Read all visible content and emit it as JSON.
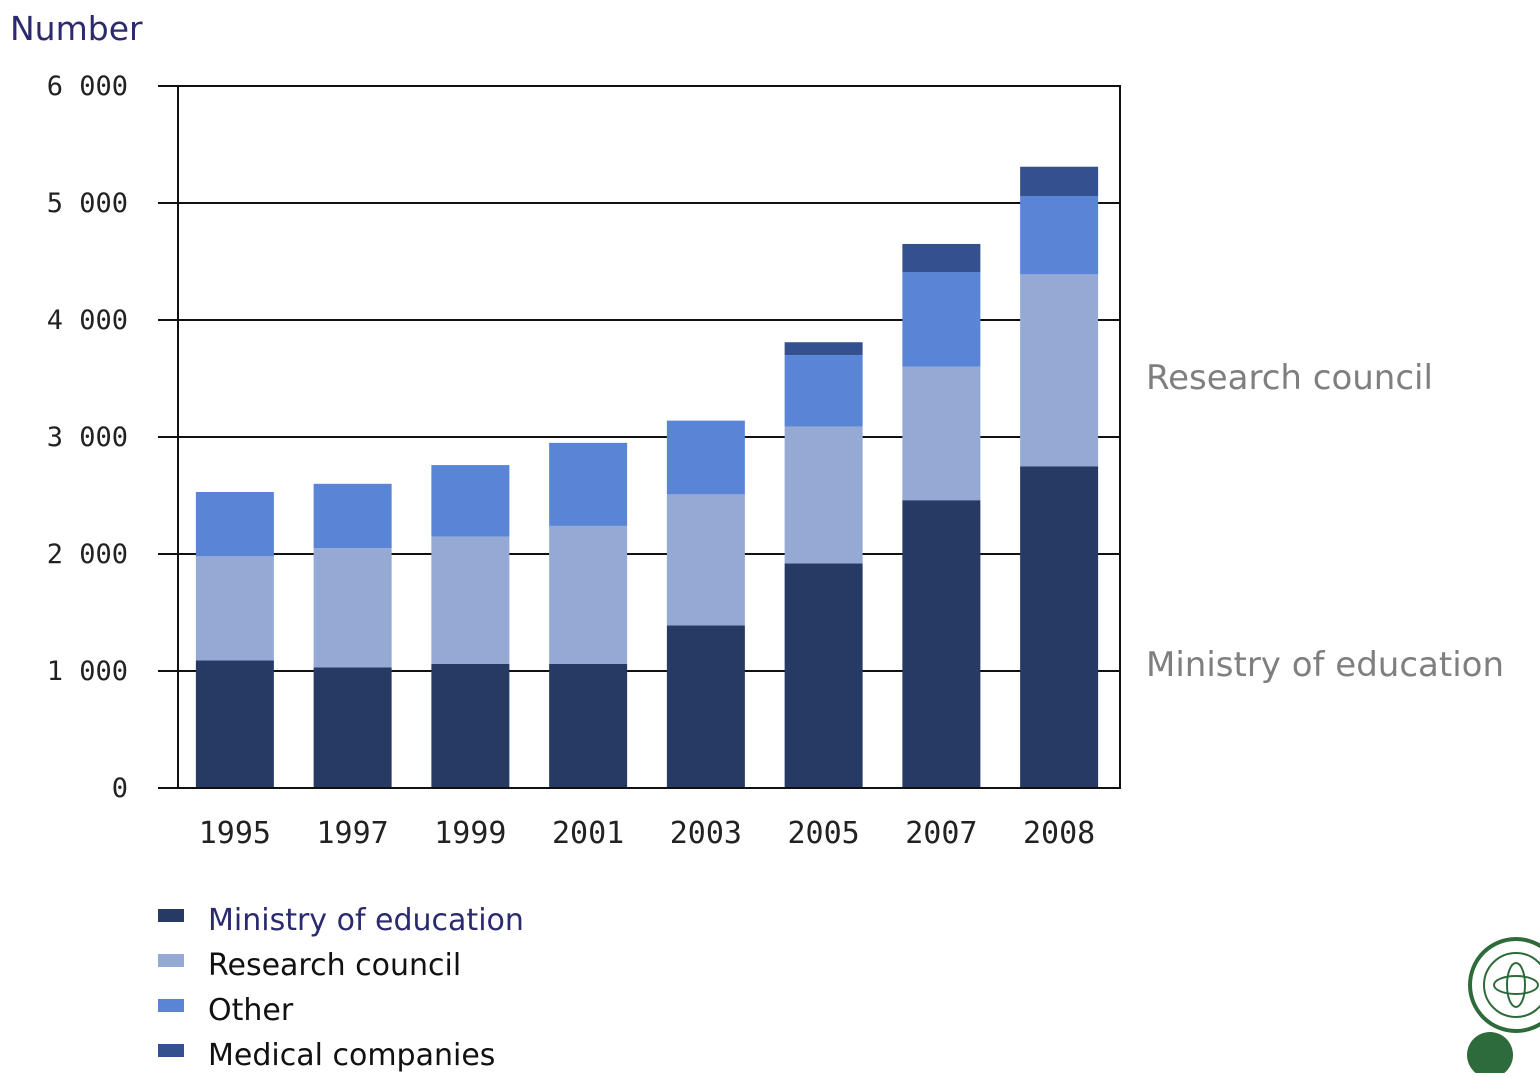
{
  "chart_data": {
    "type": "bar",
    "stacked": true,
    "ylabel": "Number",
    "ylim": [
      0,
      6000
    ],
    "yticks": [
      0,
      1000,
      2000,
      3000,
      4000,
      5000,
      6000
    ],
    "ytick_labels": [
      "0",
      "1 000",
      "2 000",
      "3 000",
      "4 000",
      "5 000",
      "6 000"
    ],
    "grid": true,
    "legend_position": "bottom",
    "categories": [
      "1995",
      "1997",
      "1999",
      "2001",
      "2003",
      "2005",
      "2007",
      "2008"
    ],
    "series": [
      {
        "name": "Ministry of education",
        "color": "#263a64",
        "values": [
          1090,
          1030,
          1060,
          1060,
          1390,
          1920,
          2460,
          2750
        ]
      },
      {
        "name": "Research council",
        "color": "#94a9d4",
        "values": [
          890,
          1020,
          1090,
          1180,
          1120,
          1170,
          1140,
          1640
        ]
      },
      {
        "name": "Other",
        "color": "#5a85d6",
        "values": [
          550,
          550,
          610,
          710,
          630,
          610,
          810,
          670
        ]
      },
      {
        "name": "Medical companies",
        "color": "#34508f",
        "values": [
          0,
          0,
          0,
          0,
          0,
          110,
          240,
          250
        ]
      }
    ],
    "annotations": [
      "Research council",
      "Ministry of education"
    ]
  }
}
